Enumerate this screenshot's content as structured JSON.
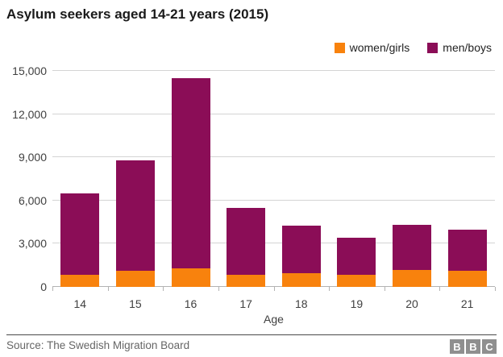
{
  "title": "Asylum seekers aged 14-21 years (2015)",
  "legend": {
    "items": [
      {
        "label": "women/girls",
        "color": "#f8820d"
      },
      {
        "label": "men/boys",
        "color": "#8b0d57"
      }
    ]
  },
  "chart_data": {
    "type": "bar",
    "stacked": true,
    "title": "Asylum seekers aged 14-21 years (2015)",
    "categories": [
      "14",
      "15",
      "16",
      "17",
      "18",
      "19",
      "20",
      "21"
    ],
    "series": [
      {
        "name": "women/girls",
        "color": "#f8820d",
        "values": [
          850,
          1100,
          1300,
          850,
          950,
          850,
          1200,
          1100
        ]
      },
      {
        "name": "men/boys",
        "color": "#8b0d57",
        "values": [
          5650,
          7700,
          13200,
          4650,
          3300,
          2550,
          3100,
          2900
        ]
      }
    ],
    "totals": [
      6500,
      8800,
      14500,
      5500,
      4250,
      3400,
      4300,
      4000
    ],
    "xlabel": "Age",
    "ylabel": "",
    "ylim": [
      0,
      15000
    ],
    "ytick_labels": [
      "0",
      "3,000",
      "6,000",
      "9,000",
      "12,000",
      "15,000"
    ],
    "grid": true,
    "legend_position": "top-right"
  },
  "footer": {
    "source": "Source: The Swedish Migration Board",
    "logo_letters": [
      "B",
      "B",
      "C"
    ]
  }
}
